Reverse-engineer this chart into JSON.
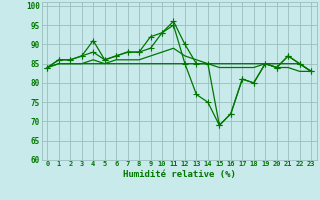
{
  "x": [
    0,
    1,
    2,
    3,
    4,
    5,
    6,
    7,
    8,
    9,
    10,
    11,
    12,
    13,
    14,
    15,
    16,
    17,
    18,
    19,
    20,
    21,
    22,
    23
  ],
  "series1": [
    84,
    86,
    86,
    87,
    91,
    86,
    87,
    88,
    88,
    92,
    93,
    96,
    90,
    85,
    85,
    69,
    72,
    81,
    80,
    85,
    84,
    87,
    85,
    83
  ],
  "series2": [
    84,
    86,
    86,
    87,
    88,
    86,
    87,
    88,
    88,
    89,
    93,
    95,
    85,
    77,
    75,
    69,
    72,
    81,
    80,
    85,
    84,
    87,
    85,
    83
  ],
  "series3": [
    84,
    85,
    85,
    85,
    85,
    85,
    85,
    85,
    85,
    85,
    85,
    85,
    85,
    85,
    85,
    85,
    85,
    85,
    85,
    85,
    85,
    85,
    85,
    83
  ],
  "series4": [
    84,
    85,
    85,
    85,
    86,
    85,
    86,
    86,
    86,
    87,
    88,
    89,
    87,
    86,
    85,
    84,
    84,
    84,
    84,
    85,
    84,
    84,
    83,
    83
  ],
  "bg_color": "#c8eaea",
  "grid_color": "#9abebe",
  "line_color": "#007700",
  "xlabel": "Humidité relative (%)",
  "ylim": [
    60,
    101
  ],
  "xlim": [
    -0.5,
    23.5
  ],
  "yticks": [
    60,
    65,
    70,
    75,
    80,
    85,
    90,
    95,
    100
  ],
  "xticks": [
    0,
    1,
    2,
    3,
    4,
    5,
    6,
    7,
    8,
    9,
    10,
    11,
    12,
    13,
    14,
    15,
    16,
    17,
    18,
    19,
    20,
    21,
    22,
    23
  ],
  "marker_size": 2.0,
  "lw": 0.9
}
